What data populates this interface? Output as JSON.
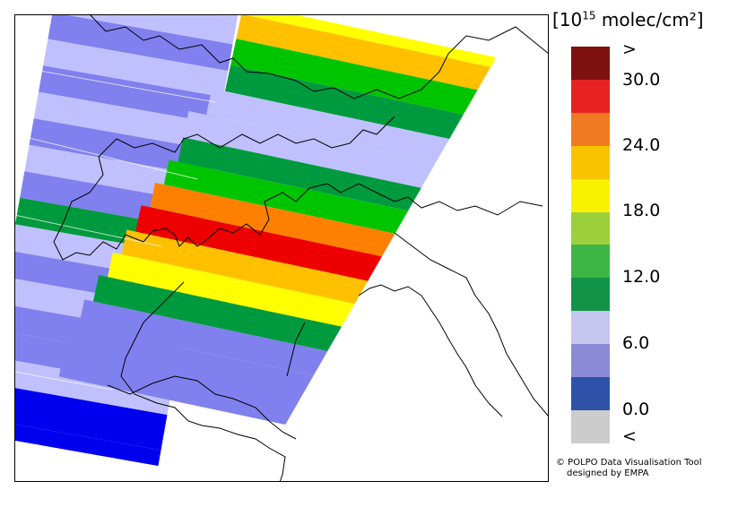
{
  "legend": {
    "title_prefix": "[10",
    "title_exp": "15",
    "title_suffix": " molec/cm²]",
    "tick_labels": [
      ">",
      "30.0",
      "24.0",
      "18.0",
      "12.0",
      "6.0",
      "0.0",
      "<"
    ],
    "colors": [
      "#7f1010",
      "#e82222",
      "#f07a22",
      "#fac300",
      "#f6f200",
      "#9cd03c",
      "#3fb545",
      "#129448",
      "#c6c6ee",
      "#8a8ad6",
      "#2e52a8",
      "#cccccc"
    ]
  },
  "credit": {
    "line1": "© POLPO Data Visualisation Tool",
    "line2": "designed by EMPA"
  },
  "palette": {
    "blue_deep": "#0000ee",
    "blue_mid": "#8080ee",
    "blue_light": "#c0c0ff",
    "green": "#00c400",
    "green_dark": "#009a3e",
    "yellow": "#ffff00",
    "orange_light": "#ffc000",
    "orange": "#ff7f00",
    "red": "#ee0000"
  }
}
